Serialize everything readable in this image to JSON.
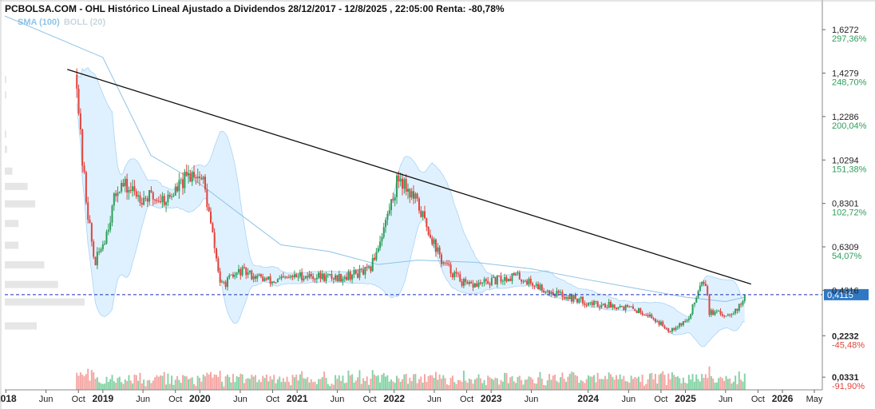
{
  "header": {
    "title": "PCBOLSA.COM - OHL Histórico Lineal Ajustado a Dividendos 28/12/2017 - 12/8/2025 , 22:05:00 Renta: -80,78%",
    "indicator_sma": "SMA (100)",
    "indicator_boll": "BOLL (20)"
  },
  "colors": {
    "up": "#2e9e5b",
    "down": "#e0443e",
    "vol_up": "#86d3a6",
    "vol_down": "#f4a7a4",
    "band_fill": "#dcefff",
    "band_line": "#a9d3f5",
    "sma": "#8ec3e6",
    "trendline": "#111111",
    "last_price_line": "#1b2fbf",
    "last_price_badge": "#2f78c4",
    "pct_pos": "#2e9e5b",
    "pct_neg": "#e0443e",
    "volume_profile": "#e6e6e6"
  },
  "chart_data": {
    "type": "candlestick",
    "title": "PCBOLSA.COM - OHL Histórico Lineal Ajustado a Dividendos 28/12/2017 - 12/8/2025 , 22:05:00 Renta: -80,78%",
    "y_scale": "linear",
    "ylim": [
      -0.025,
      1.69
    ],
    "xlim": [
      "2017-12-28",
      "2026-05-31"
    ],
    "grid": false,
    "y_ticks": [
      {
        "value": 1.6272,
        "label": "1,6272",
        "pct": "297,36%"
      },
      {
        "value": 1.4279,
        "label": "1,4279",
        "pct": "248,70%"
      },
      {
        "value": 1.2286,
        "label": "1,2286",
        "pct": "200,04%"
      },
      {
        "value": 1.0294,
        "label": "1,0294",
        "pct": "151,38%"
      },
      {
        "value": 0.8301,
        "label": "0,8301",
        "pct": "102,72%"
      },
      {
        "value": 0.6309,
        "label": "0,6309",
        "pct": "54,07%"
      },
      {
        "value": 0.4316,
        "label": "0,4316",
        "pct": ""
      },
      {
        "value": 0.2232,
        "label": "0,2232",
        "pct": "-45,48%"
      },
      {
        "value": 0.0331,
        "label": "0,0331",
        "pct": "-91,90%"
      }
    ],
    "x_ticks": [
      {
        "label": "2018",
        "date": "2018-01",
        "major": true
      },
      {
        "label": "Jun",
        "date": "2018-06",
        "major": false
      },
      {
        "label": "Oct",
        "date": "2018-10",
        "major": false
      },
      {
        "label": "2019",
        "date": "2019-01",
        "major": true
      },
      {
        "label": "Jun",
        "date": "2019-06",
        "major": false
      },
      {
        "label": "Oct",
        "date": "2019-10",
        "major": false
      },
      {
        "label": "2020",
        "date": "2020-01",
        "major": true
      },
      {
        "label": "Jun",
        "date": "2020-06",
        "major": false
      },
      {
        "label": "Oct",
        "date": "2020-10",
        "major": false
      },
      {
        "label": "2021",
        "date": "2021-01",
        "major": true
      },
      {
        "label": "Jun",
        "date": "2021-06",
        "major": false
      },
      {
        "label": "Oct",
        "date": "2021-10",
        "major": false
      },
      {
        "label": "2022",
        "date": "2022-01",
        "major": true
      },
      {
        "label": "Jun",
        "date": "2022-06",
        "major": false
      },
      {
        "label": "Oct",
        "date": "2022-10",
        "major": false
      },
      {
        "label": "2023",
        "date": "2023-01",
        "major": true
      },
      {
        "label": "Jun",
        "date": "2023-06",
        "major": false
      },
      {
        "label": "2024",
        "date": "2024-01",
        "major": true
      },
      {
        "label": "Jun",
        "date": "2024-06",
        "major": false
      },
      {
        "label": "Oct",
        "date": "2024-10",
        "major": false
      },
      {
        "label": "2025",
        "date": "2025-01",
        "major": true
      },
      {
        "label": "Jun",
        "date": "2025-06",
        "major": false
      },
      {
        "label": "Oct",
        "date": "2025-10",
        "major": false
      },
      {
        "label": "2026",
        "date": "2026-01",
        "major": true
      },
      {
        "label": "May",
        "date": "2026-05",
        "major": false
      }
    ],
    "last_price": {
      "value": 0.4115,
      "label": "0,4115"
    },
    "trendline": [
      {
        "date": "2018-08-20",
        "value": 1.445
      },
      {
        "date": "2025-09-05",
        "value": 0.46
      }
    ],
    "price_path": [
      {
        "date": "2018-09-25",
        "value": 1.42
      },
      {
        "date": "2018-10-10",
        "value": 1.1
      },
      {
        "date": "2018-11-01",
        "value": 0.83
      },
      {
        "date": "2018-12-01",
        "value": 0.55
      },
      {
        "date": "2019-01-10",
        "value": 0.68
      },
      {
        "date": "2019-03-01",
        "value": 0.92
      },
      {
        "date": "2019-06-01",
        "value": 0.86
      },
      {
        "date": "2019-09-01",
        "value": 0.85
      },
      {
        "date": "2019-12-10",
        "value": 0.98
      },
      {
        "date": "2020-01-15",
        "value": 0.93
      },
      {
        "date": "2020-03-20",
        "value": 0.45
      },
      {
        "date": "2020-06-01",
        "value": 0.52
      },
      {
        "date": "2020-10-01",
        "value": 0.47
      },
      {
        "date": "2021-01-15",
        "value": 0.5
      },
      {
        "date": "2021-06-01",
        "value": 0.49
      },
      {
        "date": "2021-10-01",
        "value": 0.52
      },
      {
        "date": "2021-12-01",
        "value": 0.75
      },
      {
        "date": "2022-01-20",
        "value": 0.96
      },
      {
        "date": "2022-04-01",
        "value": 0.82
      },
      {
        "date": "2022-07-01",
        "value": 0.56
      },
      {
        "date": "2022-10-01",
        "value": 0.45
      },
      {
        "date": "2023-01-01",
        "value": 0.47
      },
      {
        "date": "2023-04-01",
        "value": 0.5
      },
      {
        "date": "2023-08-01",
        "value": 0.43
      },
      {
        "date": "2024-01-15",
        "value": 0.37
      },
      {
        "date": "2024-05-01",
        "value": 0.36
      },
      {
        "date": "2024-08-01",
        "value": 0.33
      },
      {
        "date": "2024-11-01",
        "value": 0.25
      },
      {
        "date": "2025-01-15",
        "value": 0.3
      },
      {
        "date": "2025-03-01",
        "value": 0.48
      },
      {
        "date": "2025-03-20",
        "value": 0.47
      },
      {
        "date": "2025-04-01",
        "value": 0.33
      },
      {
        "date": "2025-06-01",
        "value": 0.32
      },
      {
        "date": "2025-07-20",
        "value": 0.35
      },
      {
        "date": "2025-08-12",
        "value": 0.4115
      }
    ],
    "sma_100_path": [
      {
        "date": "2017-12-28",
        "value": 1.69
      },
      {
        "date": "2019-01-01",
        "value": 1.5
      },
      {
        "date": "2019-07-01",
        "value": 1.05
      },
      {
        "date": "2020-01-01",
        "value": 0.92
      },
      {
        "date": "2020-06-01",
        "value": 0.78
      },
      {
        "date": "2020-11-01",
        "value": 0.64
      },
      {
        "date": "2021-05-01",
        "value": 0.61
      },
      {
        "date": "2021-11-01",
        "value": 0.55
      },
      {
        "date": "2022-04-01",
        "value": 0.57
      },
      {
        "date": "2022-11-01",
        "value": 0.56
      },
      {
        "date": "2023-06-01",
        "value": 0.53
      },
      {
        "date": "2024-01-01",
        "value": 0.48
      },
      {
        "date": "2024-07-01",
        "value": 0.44
      },
      {
        "date": "2025-01-01",
        "value": 0.4
      },
      {
        "date": "2025-06-01",
        "value": 0.38
      },
      {
        "date": "2025-08-12",
        "value": 0.4
      }
    ],
    "volume_profile_levels": [
      {
        "price": 1.4,
        "volume": 2
      },
      {
        "price": 1.33,
        "volume": 2
      },
      {
        "price": 1.15,
        "volume": 2
      },
      {
        "price": 1.08,
        "volume": 3
      },
      {
        "price": 0.98,
        "volume": 10
      },
      {
        "price": 0.91,
        "volume": 30
      },
      {
        "price": 0.83,
        "volume": 40
      },
      {
        "price": 0.74,
        "volume": 18
      },
      {
        "price": 0.64,
        "volume": 18
      },
      {
        "price": 0.55,
        "volume": 52
      },
      {
        "price": 0.46,
        "volume": 70
      },
      {
        "price": 0.38,
        "volume": 105
      },
      {
        "price": 0.27,
        "volume": 42
      }
    ]
  }
}
